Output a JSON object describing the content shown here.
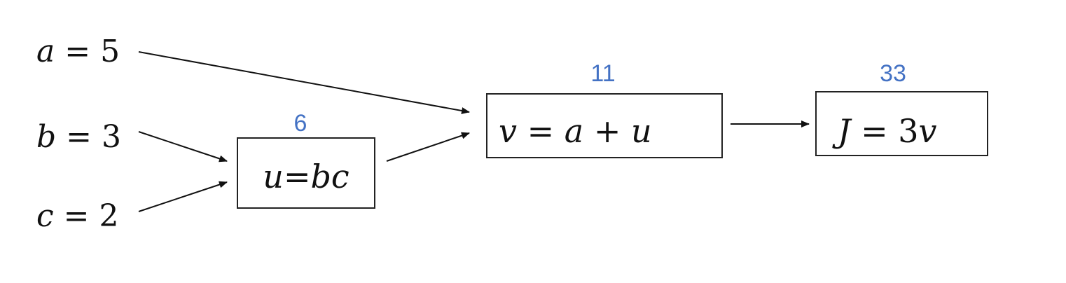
{
  "inputs": {
    "a": {
      "var": "a",
      "eq": " = ",
      "val": "5"
    },
    "b": {
      "var": "b",
      "eq": " = ",
      "val": "3"
    },
    "c": {
      "var": "c",
      "eq": " = ",
      "val": "2"
    }
  },
  "nodes": {
    "u": {
      "parts": [
        "u",
        "=",
        "bc"
      ],
      "value": "6"
    },
    "v": {
      "parts": [
        "v",
        " = ",
        "a",
        " + ",
        "u"
      ],
      "value": "11"
    },
    "j": {
      "parts": [
        "J",
        " = ",
        "3",
        "v"
      ],
      "value": "33"
    }
  },
  "colors": {
    "value_label": "#4472c4",
    "text": "#111111",
    "stroke": "#222222"
  }
}
